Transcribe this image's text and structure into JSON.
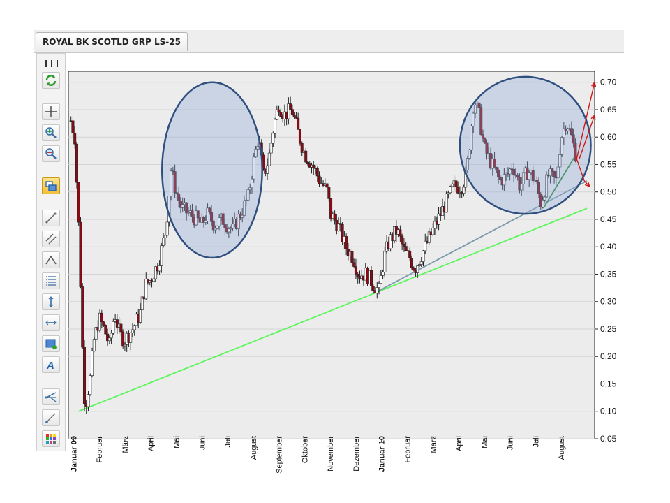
{
  "tab": {
    "title": "ROYAL BK SCOTLD GRP LS-25"
  },
  "toolbar": {
    "icons": [
      "grip-icon",
      "refresh-icon",
      "crosshair-icon",
      "zoom-in-icon",
      "zoom-out-icon",
      "compare-icon",
      "line-tool-icon",
      "channel-tool-icon",
      "triangle-tool-icon",
      "fibonacci-icon",
      "vertical-line-icon",
      "horizontal-line-icon",
      "rectangle-icon",
      "text-icon",
      "pitchfork-icon",
      "ray-icon",
      "color-palette-icon"
    ]
  },
  "chart_data": {
    "type": "candlestick",
    "title": "",
    "ylim": [
      0.05,
      0.72
    ],
    "y_ticks": [
      "0,05",
      "0,10",
      "0,15",
      "0,20",
      "0,25",
      "0,30",
      "0,35",
      "0,40",
      "0,45",
      "0,50",
      "0,55",
      "0,60",
      "0,65",
      "0,70"
    ],
    "x_labels": [
      {
        "label": "Januar 09",
        "x": 0.0,
        "bold": true
      },
      {
        "label": "Februar",
        "x": 1.0,
        "bold": false
      },
      {
        "label": "März",
        "x": 2.0,
        "bold": false
      },
      {
        "label": "April",
        "x": 3.0,
        "bold": false
      },
      {
        "label": "Mai",
        "x": 4.0,
        "bold": false
      },
      {
        "label": "Juni",
        "x": 5.0,
        "bold": false
      },
      {
        "label": "Juli",
        "x": 6.0,
        "bold": false
      },
      {
        "label": "August",
        "x": 7.0,
        "bold": false
      },
      {
        "label": "September",
        "x": 8.0,
        "bold": false
      },
      {
        "label": "Oktober",
        "x": 9.0,
        "bold": false
      },
      {
        "label": "November",
        "x": 10.0,
        "bold": false
      },
      {
        "label": "Dezember",
        "x": 11.0,
        "bold": false
      },
      {
        "label": "Januar 10",
        "x": 12.0,
        "bold": true
      },
      {
        "label": "Februar",
        "x": 13.0,
        "bold": false
      },
      {
        "label": "März",
        "x": 14.0,
        "bold": false
      },
      {
        "label": "April",
        "x": 15.0,
        "bold": false
      },
      {
        "label": "Mai",
        "x": 16.0,
        "bold": false
      },
      {
        "label": "Juni",
        "x": 17.0,
        "bold": false
      },
      {
        "label": "Juli",
        "x": 18.0,
        "bold": false
      },
      {
        "label": "August",
        "x": 19.0,
        "bold": false
      }
    ],
    "xlim": [
      -0.2,
      20.3
    ],
    "price_path": [
      [
        -0.1,
        0.63
      ],
      [
        0.05,
        0.6
      ],
      [
        0.2,
        0.44
      ],
      [
        0.3,
        0.3
      ],
      [
        0.4,
        0.13
      ],
      [
        0.5,
        0.12
      ],
      [
        0.65,
        0.16
      ],
      [
        0.8,
        0.23
      ],
      [
        1.0,
        0.27
      ],
      [
        1.2,
        0.25
      ],
      [
        1.4,
        0.22
      ],
      [
        1.6,
        0.28
      ],
      [
        1.8,
        0.24
      ],
      [
        2.0,
        0.23
      ],
      [
        2.3,
        0.25
      ],
      [
        2.6,
        0.28
      ],
      [
        2.8,
        0.33
      ],
      [
        3.0,
        0.34
      ],
      [
        3.3,
        0.37
      ],
      [
        3.6,
        0.43
      ],
      [
        3.8,
        0.54
      ],
      [
        4.0,
        0.5
      ],
      [
        4.2,
        0.47
      ],
      [
        4.5,
        0.46
      ],
      [
        4.8,
        0.45
      ],
      [
        5.0,
        0.44
      ],
      [
        5.2,
        0.46
      ],
      [
        5.5,
        0.44
      ],
      [
        5.8,
        0.45
      ],
      [
        6.0,
        0.44
      ],
      [
        6.2,
        0.43
      ],
      [
        6.5,
        0.46
      ],
      [
        6.8,
        0.49
      ],
      [
        7.0,
        0.55
      ],
      [
        7.2,
        0.6
      ],
      [
        7.4,
        0.53
      ],
      [
        7.6,
        0.56
      ],
      [
        7.8,
        0.62
      ],
      [
        8.0,
        0.66
      ],
      [
        8.2,
        0.64
      ],
      [
        8.5,
        0.65
      ],
      [
        8.8,
        0.6
      ],
      [
        9.0,
        0.57
      ],
      [
        9.3,
        0.55
      ],
      [
        9.6,
        0.52
      ],
      [
        9.9,
        0.5
      ],
      [
        10.0,
        0.46
      ],
      [
        10.3,
        0.44
      ],
      [
        10.6,
        0.4
      ],
      [
        10.9,
        0.38
      ],
      [
        11.1,
        0.35
      ],
      [
        11.4,
        0.35
      ],
      [
        11.7,
        0.33
      ],
      [
        11.9,
        0.32
      ],
      [
        12.1,
        0.38
      ],
      [
        12.3,
        0.41
      ],
      [
        12.6,
        0.43
      ],
      [
        12.9,
        0.39
      ],
      [
        13.1,
        0.38
      ],
      [
        13.3,
        0.36
      ],
      [
        13.6,
        0.39
      ],
      [
        14.0,
        0.43
      ],
      [
        14.4,
        0.47
      ],
      [
        14.8,
        0.51
      ],
      [
        15.1,
        0.51
      ],
      [
        15.3,
        0.53
      ],
      [
        15.6,
        0.67
      ],
      [
        15.8,
        0.64
      ],
      [
        16.0,
        0.58
      ],
      [
        16.3,
        0.55
      ],
      [
        16.6,
        0.52
      ],
      [
        16.9,
        0.53
      ],
      [
        17.1,
        0.55
      ],
      [
        17.4,
        0.51
      ],
      [
        17.7,
        0.54
      ],
      [
        18.0,
        0.52
      ],
      [
        18.2,
        0.48
      ],
      [
        18.5,
        0.53
      ],
      [
        18.8,
        0.52
      ],
      [
        19.0,
        0.6
      ],
      [
        19.2,
        0.63
      ],
      [
        19.4,
        0.6
      ],
      [
        19.6,
        0.56
      ]
    ],
    "trendlines": [
      {
        "color": "#5cf65c",
        "from": [
          0.2,
          0.1
        ],
        "to": [
          20.0,
          0.47
        ]
      },
      {
        "color": "#7a9aaa",
        "from": [
          11.9,
          0.32
        ],
        "to": [
          20.0,
          0.52
        ]
      },
      {
        "color": "#2a8a3a",
        "from": [
          18.3,
          0.47
        ],
        "to": [
          19.6,
          0.57
        ]
      }
    ],
    "ellipses": [
      {
        "cx": 5.4,
        "cy": 0.54,
        "rx": 1.95,
        "ry": 0.16
      },
      {
        "cx": 17.6,
        "cy": 0.585,
        "rx": 2.55,
        "ry": 0.125
      }
    ],
    "arrows": [
      {
        "color": "#d01818",
        "path": [
          [
            19.6,
            0.56
          ],
          [
            19.9,
            0.62
          ],
          [
            20.3,
            0.7
          ]
        ]
      },
      {
        "color": "#d01818",
        "path": [
          [
            19.7,
            0.56
          ],
          [
            20.0,
            0.6
          ],
          [
            20.3,
            0.64
          ]
        ]
      },
      {
        "color": "#d01818",
        "path": [
          [
            19.6,
            0.56
          ],
          [
            19.9,
            0.52
          ],
          [
            20.1,
            0.51
          ]
        ]
      }
    ],
    "colors": {
      "up": "#ffffff",
      "down": "#8b0a14",
      "wick": "#222222",
      "grid": "#d4d4d4",
      "plot_bg": "#ececec",
      "ellipse_fill": "#8ea9d6",
      "ellipse_stroke": "#2f4f7f"
    },
    "grid": true
  }
}
